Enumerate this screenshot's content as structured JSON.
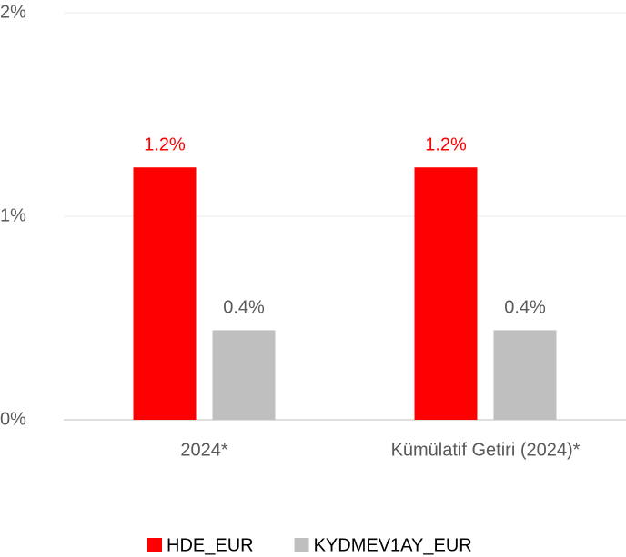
{
  "chart_data": {
    "type": "bar",
    "categories": [
      "2024*",
      "Kümülatif Getiri (2024)*"
    ],
    "series": [
      {
        "name": "HDE_EUR",
        "color": "#ff0000",
        "values": [
          1.24,
          1.24
        ],
        "value_labels": [
          "1.2%",
          "1.2%"
        ]
      },
      {
        "name": "KYDMEV1AY_EUR",
        "color": "#bfbfbf",
        "values": [
          0.44,
          0.44
        ],
        "value_labels": [
          "0.4%",
          "0.4%"
        ]
      }
    ],
    "ylim": [
      0,
      2
    ],
    "yticks": [
      {
        "value": 0,
        "label": "0%"
      },
      {
        "value": 1,
        "label": "1%"
      },
      {
        "value": 2,
        "label": "2%"
      }
    ],
    "grid": true,
    "legend": "bottom"
  }
}
